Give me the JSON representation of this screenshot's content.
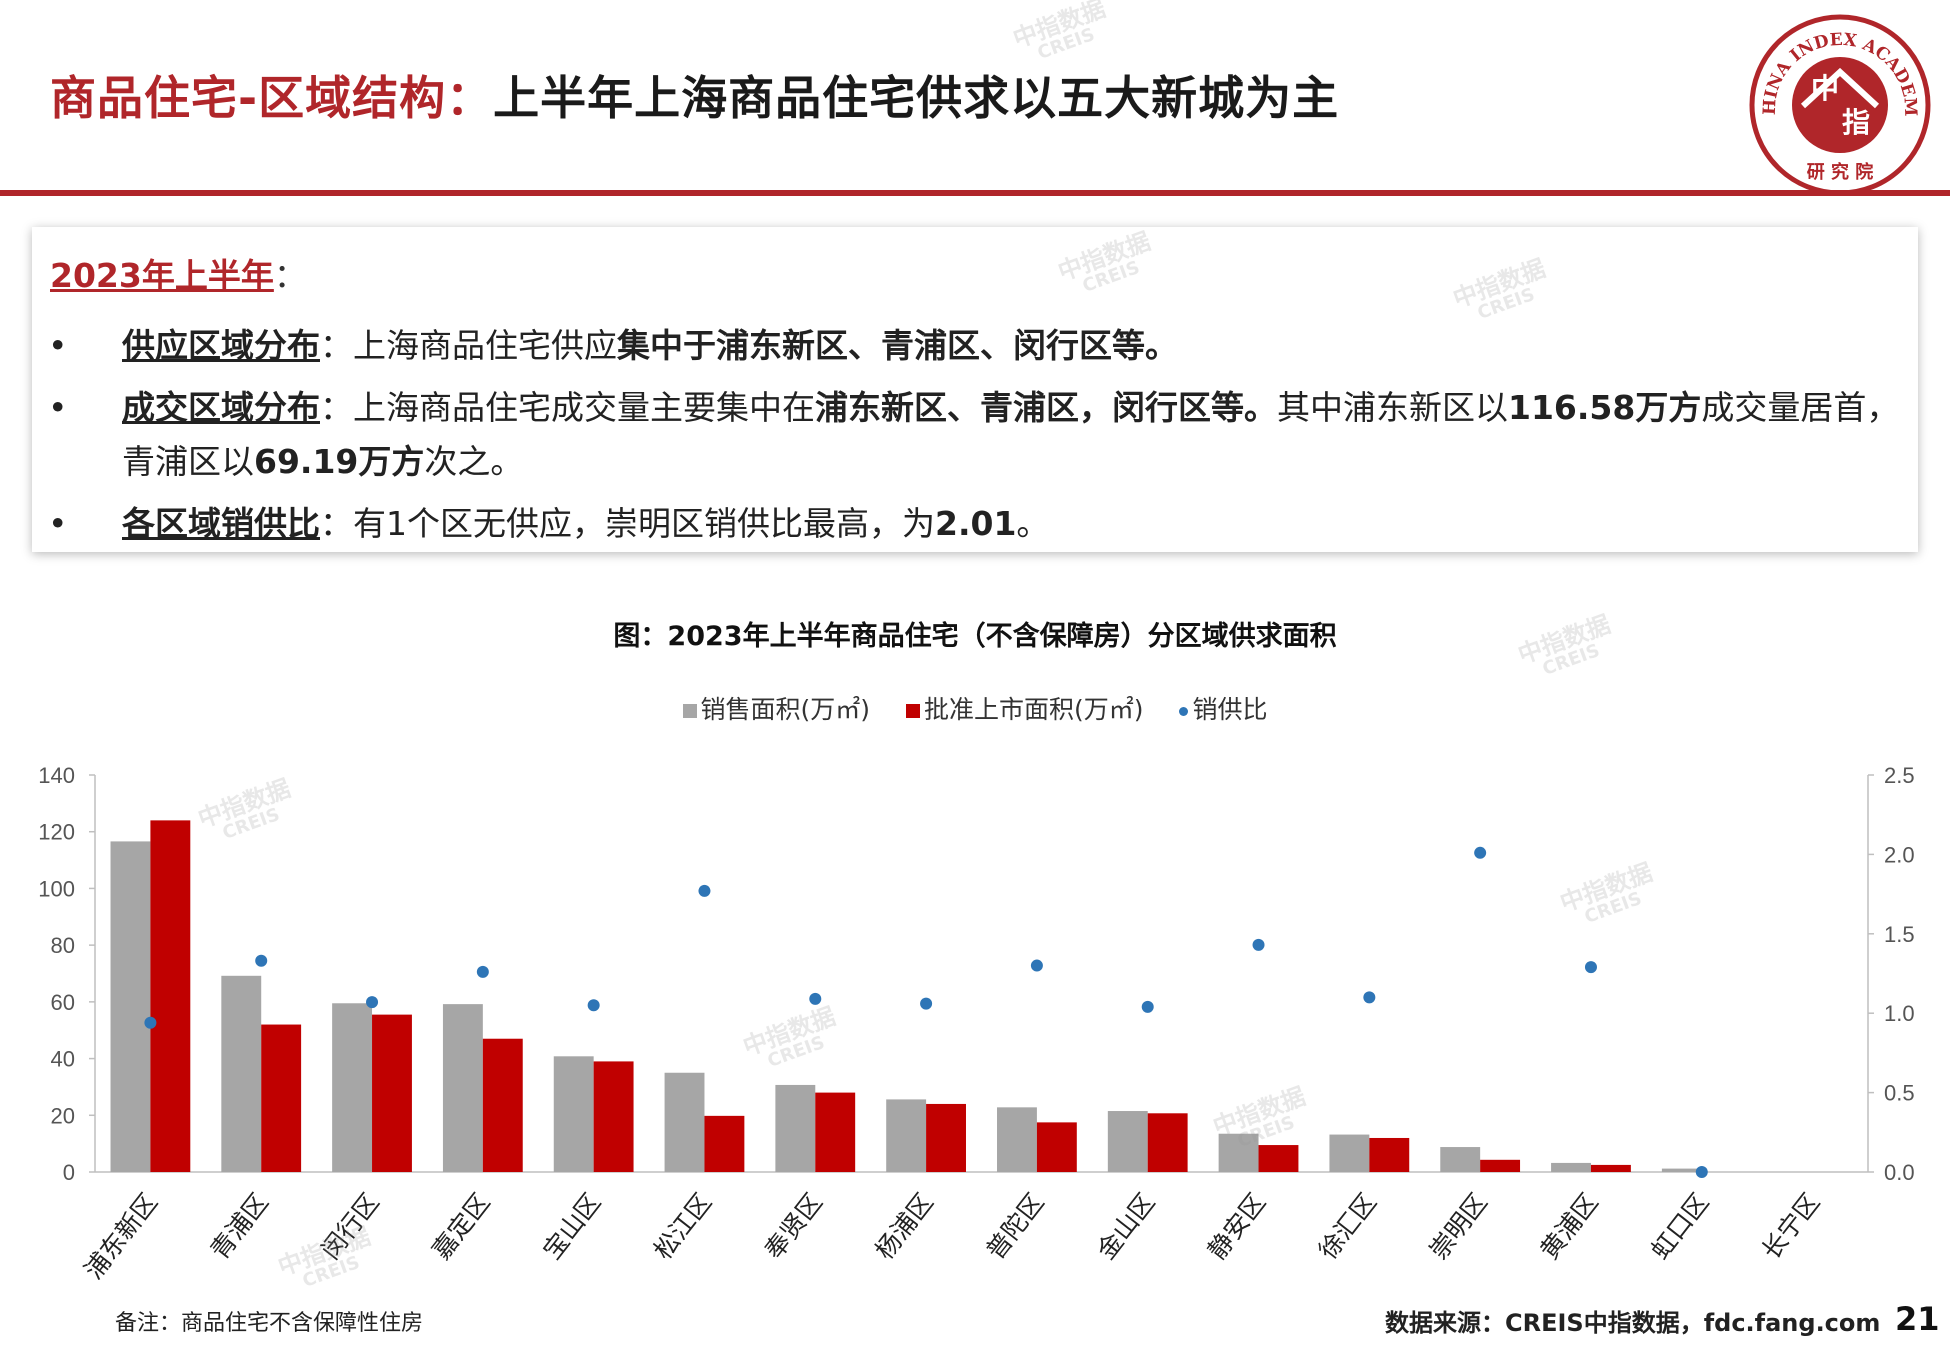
{
  "header": {
    "title_prefix": "商品住宅-区域结构：",
    "title_main": "上半年上海商品住宅供求以五大新城为主",
    "logo_top_text": "CHINA INDEX ACADEMY",
    "logo_center_top": "中",
    "logo_center_bottom": "指",
    "logo_bottom_text": "研 究 院"
  },
  "summary": {
    "heading": "2023年上半年",
    "heading_colon": "：",
    "bullets": [
      {
        "dot": "•",
        "label": "供应区域分布",
        "sep": "：",
        "text_a": "上海商品住宅供应",
        "bold_a": "集中于浦东新区、青浦区、闵行区等。"
      },
      {
        "dot": "•",
        "label": "成交区域分布",
        "sep": "：",
        "text_a": "上海商品住宅成交量主要集中在",
        "bold_a": "浦东新区、青浦区，闵行区等。",
        "text_b": "其中浦东新区以",
        "bold_b": "116.58万方",
        "text_c": "成交量居首，青浦区以",
        "bold_c": "69.19万方",
        "text_d": "次之。"
      },
      {
        "dot": "•",
        "label": "各区域销供比",
        "sep": "：",
        "text_a": "有1个区无供应，崇明区销供比最高，为",
        "bold_a": "2.01",
        "text_b": "。"
      }
    ]
  },
  "chart_data": {
    "type": "bar",
    "title": "图：2023年上半年商品住宅（不含保障房）分区域供求面积",
    "categories": [
      "浦东新区",
      "青浦区",
      "闵行区",
      "嘉定区",
      "宝山区",
      "松江区",
      "奉贤区",
      "杨浦区",
      "普陀区",
      "金山区",
      "静安区",
      "徐汇区",
      "崇明区",
      "黄浦区",
      "虹口区",
      "长宁区"
    ],
    "series": [
      {
        "name": "销售面积(万㎡)",
        "type": "bar",
        "axis": "left",
        "color": "#a6a6a6",
        "values": [
          116.58,
          69.19,
          59.5,
          59.2,
          40.8,
          35.0,
          30.7,
          25.6,
          22.8,
          21.5,
          13.5,
          13.2,
          8.8,
          3.2,
          1.2,
          0
        ]
      },
      {
        "name": "批准上市面积(万㎡)",
        "type": "bar",
        "axis": "left",
        "color": "#c00000",
        "values": [
          124.0,
          52.0,
          55.5,
          47.0,
          39.0,
          19.8,
          28.0,
          24.0,
          17.5,
          20.7,
          9.5,
          12.0,
          4.3,
          2.5,
          0,
          0
        ]
      },
      {
        "name": "销供比",
        "type": "scatter",
        "axis": "right",
        "color": "#2e75b6",
        "values": [
          0.94,
          1.33,
          1.07,
          1.26,
          1.05,
          1.77,
          1.09,
          1.06,
          1.3,
          1.04,
          1.43,
          1.1,
          2.01,
          1.29,
          0.0,
          0.0
        ]
      }
    ],
    "y_left": {
      "ylim": [
        0,
        140
      ],
      "ticks": [
        "0",
        "20",
        "40",
        "60",
        "80",
        "100",
        "120",
        "140"
      ]
    },
    "y_right": {
      "ylim": [
        0,
        2.5
      ],
      "ticks": [
        "0.0",
        "0.5",
        "1.0",
        "1.5",
        "2.0",
        "2.5"
      ]
    },
    "legend_position": "top-center",
    "grid": false
  },
  "footer": {
    "note": "备注：商品住宅不含保障性住房",
    "source": "数据来源：CREIS中指数据，fdc.fang.com",
    "page": "21"
  },
  "watermark": {
    "line1": "中指数据",
    "line2": "CREIS"
  },
  "colors": {
    "accent_red": "#b0262a",
    "bar_gray": "#a6a6a6",
    "bar_red": "#c00000",
    "dot_blue": "#2e75b6"
  }
}
